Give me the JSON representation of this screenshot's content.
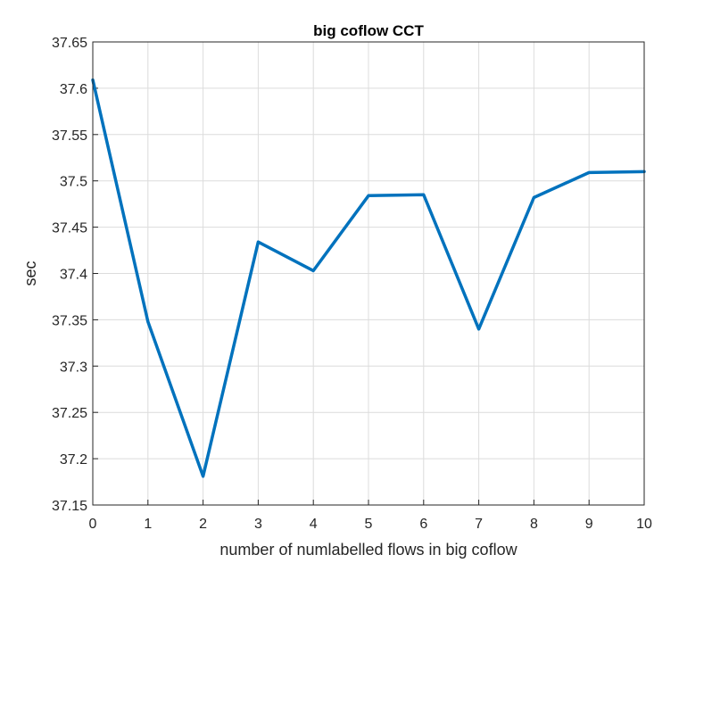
{
  "chart_data": {
    "type": "line",
    "title": "big coflow CCT",
    "xlabel": "number of numlabelled flows in big coflow",
    "ylabel": "sec",
    "xlim": [
      0,
      10
    ],
    "ylim": [
      37.15,
      37.65
    ],
    "grid": true,
    "x_ticks": [
      "0",
      "1",
      "2",
      "3",
      "4",
      "5",
      "6",
      "7",
      "8",
      "9",
      "10"
    ],
    "y_ticks": [
      "37.15",
      "37.2",
      "37.25",
      "37.3",
      "37.35",
      "37.4",
      "37.45",
      "37.5",
      "37.55",
      "37.6",
      "37.65"
    ],
    "series": [
      {
        "color": "#0072bd",
        "x": [
          0,
          1,
          2,
          3,
          4,
          5,
          6,
          7,
          8,
          9,
          10
        ],
        "y": [
          37.609,
          37.348,
          37.181,
          37.434,
          37.403,
          37.484,
          37.485,
          37.34,
          37.482,
          37.509,
          37.51
        ]
      }
    ]
  }
}
